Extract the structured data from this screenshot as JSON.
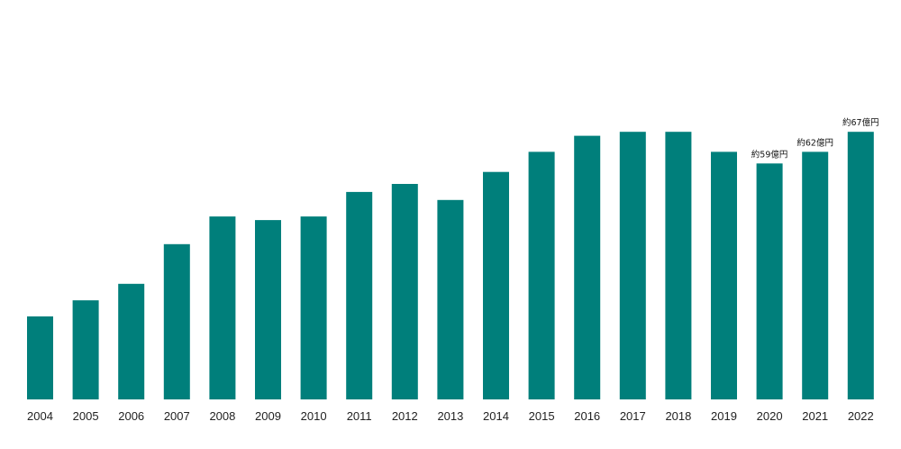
{
  "chart_data": {
    "type": "bar",
    "categories": [
      "2004",
      "2005",
      "2006",
      "2007",
      "2008",
      "2009",
      "2010",
      "2011",
      "2012",
      "2013",
      "2014",
      "2015",
      "2016",
      "2017",
      "2018",
      "2019",
      "2020",
      "2021",
      "2022"
    ],
    "values": [
      20.7,
      24.7,
      28.8,
      38.7,
      45.6,
      44.7,
      45.6,
      51.7,
      53.7,
      49.7,
      56.7,
      61.7,
      65.7,
      66.7,
      66.7,
      61.7,
      58.8,
      61.7,
      66.7
    ],
    "data_labels": [
      "",
      "",
      "",
      "",
      "",
      "",
      "",
      "",
      "",
      "",
      "",
      "",
      "",
      "",
      "",
      "",
      "約59億円",
      "約62億円",
      "約67億円"
    ],
    "title": "",
    "xlabel": "",
    "ylabel": "",
    "ylim": [
      0,
      100
    ],
    "grid": false,
    "bar_color": "#007f7b"
  }
}
